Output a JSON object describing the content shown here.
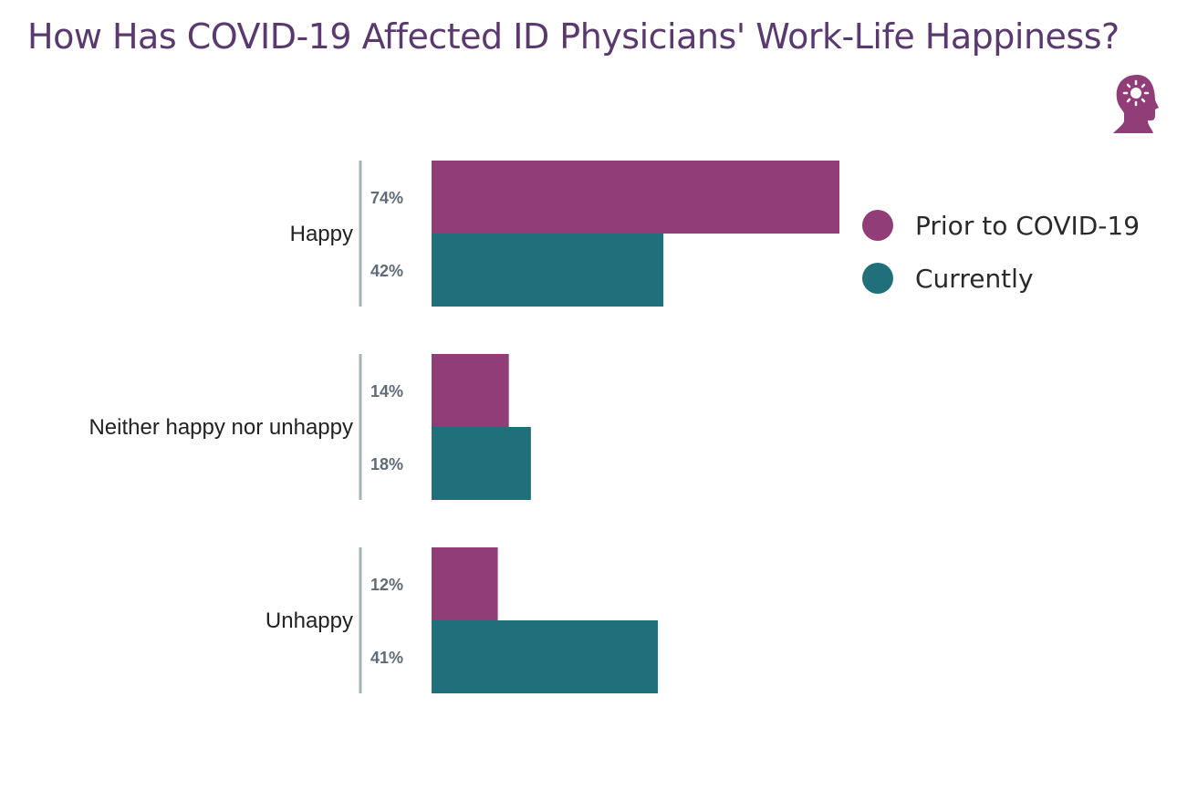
{
  "title": "How Has COVID-19 Affected ID Physicians' Work-Life Happiness?",
  "icon": "head-with-sun-icon",
  "colors": {
    "prior": "#913d78",
    "current": "#1f707a",
    "title": "#5a3a6e",
    "axis": "#aab2b8"
  },
  "chart_data": {
    "type": "bar",
    "orientation": "horizontal",
    "categories": [
      "Happy",
      "Neither happy nor unhappy",
      "Unhappy"
    ],
    "series": [
      {
        "name": "Prior to COVID-19",
        "values": [
          74,
          14,
          12
        ],
        "labels": [
          "74%",
          "14%",
          "12%"
        ]
      },
      {
        "name": "Currently",
        "values": [
          42,
          18,
          41
        ],
        "labels": [
          "42%",
          "18%",
          "41%"
        ]
      }
    ],
    "unit": "%",
    "legend": "right",
    "grid": false
  }
}
